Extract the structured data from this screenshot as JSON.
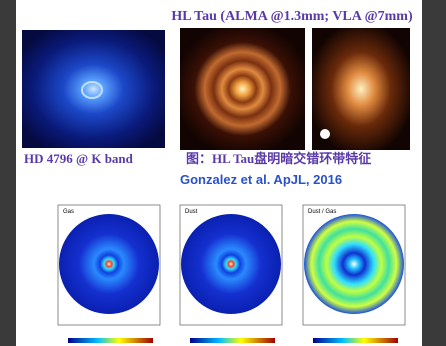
{
  "header": {
    "title": "HL Tau (ALMA @1.3mm; VLA @7mm)"
  },
  "captions": {
    "left": "HD 4796 @ K band",
    "right": "图：HL Tau盘明暗交错环带特征",
    "citation": "Gonzalez et al. ApJL, 2016"
  },
  "panels": [
    {
      "label": "Gas"
    },
    {
      "label": "Dust"
    },
    {
      "label": "Dust / Gas"
    }
  ]
}
